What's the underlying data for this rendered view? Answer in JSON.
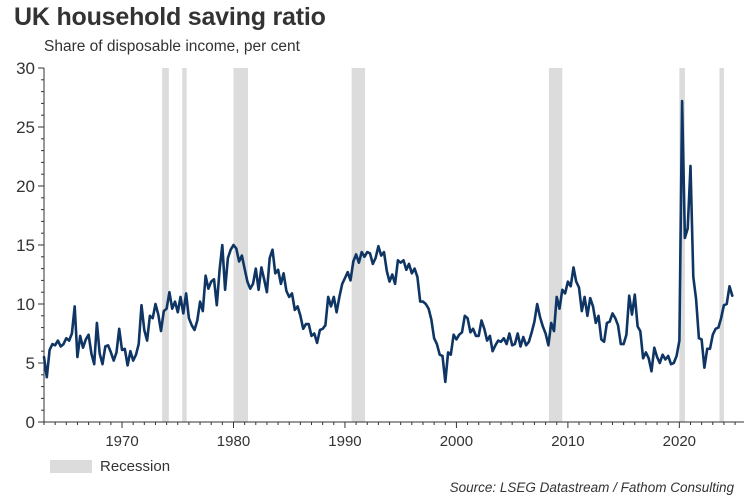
{
  "title": "UK household saving ratio",
  "subtitle": "Share of disposable income, per cent",
  "legend": {
    "recession_label": "Recession"
  },
  "source": "Source: LSEG Datastream / Fathom Consulting",
  "colors": {
    "line": "#0f3564",
    "recession": "#dcdcdc",
    "axis": "#333333"
  },
  "chart_data": {
    "type": "line",
    "title": "UK household saving ratio",
    "subtitle": "Share of disposable income, per cent",
    "xlabel": "",
    "ylabel": "",
    "xlim": [
      1963,
      2025.8
    ],
    "ylim": [
      0,
      30
    ],
    "yticks": [
      0,
      5,
      10,
      15,
      20,
      25,
      30
    ],
    "xticks": [
      1970,
      1980,
      1990,
      2000,
      2010,
      2020
    ],
    "grid": false,
    "legend_position": "bottom-left",
    "recessions": [
      [
        1973.6,
        1974.2
      ],
      [
        1975.4,
        1975.8
      ],
      [
        1980.0,
        1981.3
      ],
      [
        1990.6,
        1991.8
      ],
      [
        2008.3,
        2009.5
      ],
      [
        2020.0,
        2020.5
      ],
      [
        2023.6,
        2024.0
      ]
    ],
    "series": [
      {
        "values": [
          [
            1963.0,
            5.5
          ],
          [
            1963.25,
            3.8
          ],
          [
            1963.5,
            6.1
          ],
          [
            1963.75,
            6.6
          ],
          [
            1964.0,
            6.5
          ],
          [
            1964.25,
            6.9
          ],
          [
            1964.5,
            6.4
          ],
          [
            1964.75,
            6.6
          ],
          [
            1965.0,
            7.1
          ],
          [
            1965.25,
            6.9
          ],
          [
            1965.5,
            7.5
          ],
          [
            1965.75,
            9.8
          ],
          [
            1966.0,
            5.5
          ],
          [
            1966.25,
            7.3
          ],
          [
            1966.5,
            6.3
          ],
          [
            1966.75,
            7.0
          ],
          [
            1967.0,
            7.4
          ],
          [
            1967.25,
            5.8
          ],
          [
            1967.5,
            4.9
          ],
          [
            1967.75,
            8.4
          ],
          [
            1968.0,
            5.8
          ],
          [
            1968.25,
            4.9
          ],
          [
            1968.5,
            6.4
          ],
          [
            1968.75,
            6.5
          ],
          [
            1969.0,
            5.9
          ],
          [
            1969.25,
            5.2
          ],
          [
            1969.5,
            5.9
          ],
          [
            1969.75,
            7.9
          ],
          [
            1970.0,
            6.1
          ],
          [
            1970.25,
            6.2
          ],
          [
            1970.5,
            4.8
          ],
          [
            1970.75,
            6.0
          ],
          [
            1971.0,
            5.2
          ],
          [
            1971.25,
            5.7
          ],
          [
            1971.5,
            6.6
          ],
          [
            1971.75,
            9.9
          ],
          [
            1972.0,
            7.8
          ],
          [
            1972.25,
            6.9
          ],
          [
            1972.5,
            9.0
          ],
          [
            1972.75,
            8.8
          ],
          [
            1973.0,
            10.0
          ],
          [
            1973.25,
            9.1
          ],
          [
            1973.5,
            7.7
          ],
          [
            1973.75,
            9.4
          ],
          [
            1974.0,
            9.6
          ],
          [
            1974.25,
            11.0
          ],
          [
            1974.5,
            9.6
          ],
          [
            1974.75,
            10.2
          ],
          [
            1975.0,
            9.3
          ],
          [
            1975.25,
            10.6
          ],
          [
            1975.5,
            9.2
          ],
          [
            1975.75,
            10.9
          ],
          [
            1976.0,
            8.8
          ],
          [
            1976.25,
            8.2
          ],
          [
            1976.5,
            7.8
          ],
          [
            1976.75,
            8.6
          ],
          [
            1977.0,
            10.2
          ],
          [
            1977.25,
            9.4
          ],
          [
            1977.5,
            12.4
          ],
          [
            1977.75,
            11.3
          ],
          [
            1978.0,
            11.9
          ],
          [
            1978.25,
            12.1
          ],
          [
            1978.5,
            9.9
          ],
          [
            1978.75,
            12.9
          ],
          [
            1979.0,
            15.0
          ],
          [
            1979.25,
            11.2
          ],
          [
            1979.5,
            13.9
          ],
          [
            1979.75,
            14.6
          ],
          [
            1980.0,
            15.0
          ],
          [
            1980.25,
            14.7
          ],
          [
            1980.5,
            13.6
          ],
          [
            1980.75,
            14.1
          ],
          [
            1981.0,
            13.0
          ],
          [
            1981.25,
            11.9
          ],
          [
            1981.5,
            11.3
          ],
          [
            1981.75,
            11.7
          ],
          [
            1982.0,
            13.0
          ],
          [
            1982.25,
            11.2
          ],
          [
            1982.5,
            13.1
          ],
          [
            1982.75,
            12.1
          ],
          [
            1983.0,
            11.0
          ],
          [
            1983.25,
            13.9
          ],
          [
            1983.5,
            14.6
          ],
          [
            1983.75,
            12.6
          ],
          [
            1984.0,
            12.9
          ],
          [
            1984.25,
            11.7
          ],
          [
            1984.5,
            12.6
          ],
          [
            1984.75,
            11.1
          ],
          [
            1985.0,
            10.6
          ],
          [
            1985.25,
            10.9
          ],
          [
            1985.5,
            9.5
          ],
          [
            1985.75,
            9.8
          ],
          [
            1986.0,
            9.0
          ],
          [
            1986.25,
            7.9
          ],
          [
            1986.5,
            8.3
          ],
          [
            1986.75,
            8.3
          ],
          [
            1987.0,
            7.3
          ],
          [
            1987.25,
            7.5
          ],
          [
            1987.5,
            6.7
          ],
          [
            1987.75,
            7.8
          ],
          [
            1988.0,
            7.9
          ],
          [
            1988.25,
            8.2
          ],
          [
            1988.5,
            10.6
          ],
          [
            1988.75,
            9.8
          ],
          [
            1989.0,
            10.6
          ],
          [
            1989.25,
            9.3
          ],
          [
            1989.5,
            10.6
          ],
          [
            1989.75,
            11.7
          ],
          [
            1990.0,
            12.2
          ],
          [
            1990.25,
            12.7
          ],
          [
            1990.5,
            12.0
          ],
          [
            1990.75,
            13.6
          ],
          [
            1991.0,
            14.2
          ],
          [
            1991.25,
            13.5
          ],
          [
            1991.5,
            14.4
          ],
          [
            1991.75,
            14.0
          ],
          [
            1992.0,
            14.4
          ],
          [
            1992.25,
            14.3
          ],
          [
            1992.5,
            13.4
          ],
          [
            1992.75,
            13.9
          ],
          [
            1993.0,
            14.9
          ],
          [
            1993.25,
            14.1
          ],
          [
            1993.5,
            14.4
          ],
          [
            1993.75,
            12.8
          ],
          [
            1994.0,
            11.9
          ],
          [
            1994.25,
            12.5
          ],
          [
            1994.5,
            11.7
          ],
          [
            1994.75,
            13.7
          ],
          [
            1995.0,
            13.5
          ],
          [
            1995.25,
            13.7
          ],
          [
            1995.5,
            12.9
          ],
          [
            1995.75,
            13.4
          ],
          [
            1996.0,
            12.6
          ],
          [
            1996.25,
            13.0
          ],
          [
            1996.5,
            12.3
          ],
          [
            1996.75,
            10.2
          ],
          [
            1997.0,
            10.2
          ],
          [
            1997.25,
            10.0
          ],
          [
            1997.5,
            9.6
          ],
          [
            1997.75,
            8.7
          ],
          [
            1998.0,
            7.1
          ],
          [
            1998.25,
            6.6
          ],
          [
            1998.5,
            5.7
          ],
          [
            1998.75,
            5.6
          ],
          [
            1999.0,
            3.4
          ],
          [
            1999.25,
            5.9
          ],
          [
            1999.5,
            5.7
          ],
          [
            1999.75,
            7.4
          ],
          [
            2000.0,
            7.0
          ],
          [
            2000.25,
            7.4
          ],
          [
            2000.5,
            7.6
          ],
          [
            2000.75,
            9.0
          ],
          [
            2001.0,
            8.8
          ],
          [
            2001.25,
            7.6
          ],
          [
            2001.5,
            7.9
          ],
          [
            2001.75,
            7.3
          ],
          [
            2002.0,
            7.3
          ],
          [
            2002.25,
            8.6
          ],
          [
            2002.5,
            7.9
          ],
          [
            2002.75,
            6.9
          ],
          [
            2003.0,
            7.3
          ],
          [
            2003.25,
            6.0
          ],
          [
            2003.5,
            6.5
          ],
          [
            2003.75,
            6.9
          ],
          [
            2004.0,
            6.8
          ],
          [
            2004.25,
            7.1
          ],
          [
            2004.5,
            6.6
          ],
          [
            2004.75,
            7.5
          ],
          [
            2005.0,
            6.5
          ],
          [
            2005.25,
            6.6
          ],
          [
            2005.5,
            7.5
          ],
          [
            2005.75,
            6.4
          ],
          [
            2006.0,
            7.2
          ],
          [
            2006.25,
            6.5
          ],
          [
            2006.5,
            6.8
          ],
          [
            2006.75,
            7.6
          ],
          [
            2007.0,
            8.5
          ],
          [
            2007.25,
            10.0
          ],
          [
            2007.5,
            8.9
          ],
          [
            2007.75,
            8.1
          ],
          [
            2008.0,
            7.5
          ],
          [
            2008.25,
            6.5
          ],
          [
            2008.5,
            8.4
          ],
          [
            2008.75,
            7.7
          ],
          [
            2009.0,
            10.6
          ],
          [
            2009.25,
            9.6
          ],
          [
            2009.5,
            11.2
          ],
          [
            2009.75,
            10.9
          ],
          [
            2010.0,
            11.9
          ],
          [
            2010.25,
            11.5
          ],
          [
            2010.5,
            13.1
          ],
          [
            2010.75,
            11.9
          ],
          [
            2011.0,
            11.4
          ],
          [
            2011.25,
            9.4
          ],
          [
            2011.5,
            10.6
          ],
          [
            2011.75,
            9.0
          ],
          [
            2012.0,
            10.5
          ],
          [
            2012.25,
            9.8
          ],
          [
            2012.5,
            8.4
          ],
          [
            2012.75,
            9.0
          ],
          [
            2013.0,
            7.0
          ],
          [
            2013.25,
            6.8
          ],
          [
            2013.5,
            8.4
          ],
          [
            2013.75,
            8.5
          ],
          [
            2014.0,
            9.2
          ],
          [
            2014.25,
            8.8
          ],
          [
            2014.5,
            8.2
          ],
          [
            2014.75,
            6.6
          ],
          [
            2015.0,
            6.6
          ],
          [
            2015.25,
            7.4
          ],
          [
            2015.5,
            10.7
          ],
          [
            2015.75,
            9.1
          ],
          [
            2016.0,
            10.8
          ],
          [
            2016.25,
            8.1
          ],
          [
            2016.5,
            7.7
          ],
          [
            2016.75,
            5.4
          ],
          [
            2017.0,
            5.9
          ],
          [
            2017.25,
            5.4
          ],
          [
            2017.5,
            4.3
          ],
          [
            2017.75,
            6.3
          ],
          [
            2018.0,
            5.5
          ],
          [
            2018.25,
            5.0
          ],
          [
            2018.5,
            5.7
          ],
          [
            2018.75,
            5.3
          ],
          [
            2019.0,
            5.6
          ],
          [
            2019.25,
            4.9
          ],
          [
            2019.5,
            5.0
          ],
          [
            2019.75,
            5.6
          ],
          [
            2020.0,
            6.9
          ],
          [
            2020.25,
            27.2
          ],
          [
            2020.5,
            15.6
          ],
          [
            2020.75,
            16.4
          ],
          [
            2021.0,
            21.7
          ],
          [
            2021.25,
            12.3
          ],
          [
            2021.5,
            10.4
          ],
          [
            2021.75,
            7.1
          ],
          [
            2022.0,
            7.0
          ],
          [
            2022.25,
            4.6
          ],
          [
            2022.5,
            6.2
          ],
          [
            2022.75,
            6.2
          ],
          [
            2023.0,
            7.4
          ],
          [
            2023.25,
            7.9
          ],
          [
            2023.5,
            8.0
          ],
          [
            2023.75,
            8.8
          ],
          [
            2024.0,
            9.9
          ],
          [
            2024.25,
            10.0
          ],
          [
            2024.5,
            11.5
          ],
          [
            2024.75,
            10.7
          ]
        ]
      }
    ]
  }
}
